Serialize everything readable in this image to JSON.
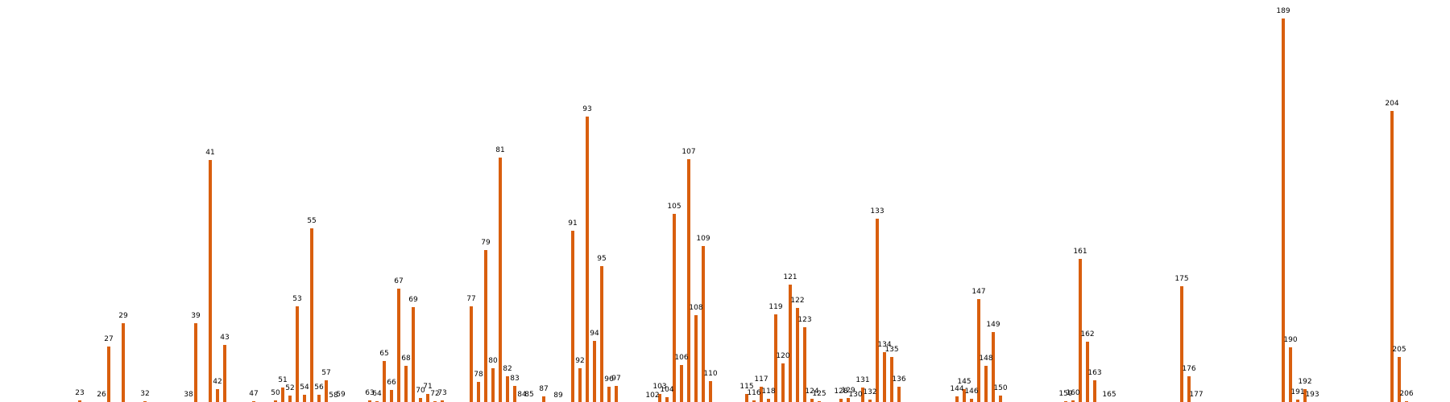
{
  "chart_data": {
    "type": "bar",
    "title": "",
    "xlabel": "",
    "ylabel": "",
    "color": "#d95f0e",
    "grid": false,
    "legend": "none",
    "xlim": [
      12,
      212
    ],
    "ylim": [
      0,
      480
    ],
    "points": [
      {
        "x": 23,
        "label": "23",
        "value": 6
      },
      {
        "x": 26,
        "label": "26",
        "value": 4
      },
      {
        "x": 27,
        "label": "27",
        "value": 73
      },
      {
        "x": 29,
        "label": "29",
        "value": 102
      },
      {
        "x": 32,
        "label": "32",
        "value": 5
      },
      {
        "x": 38,
        "label": "38",
        "value": 4
      },
      {
        "x": 39,
        "label": "39",
        "value": 102
      },
      {
        "x": 41,
        "label": "41",
        "value": 305
      },
      {
        "x": 42,
        "label": "42",
        "value": 20
      },
      {
        "x": 43,
        "label": "43",
        "value": 75
      },
      {
        "x": 47,
        "label": "47",
        "value": 5
      },
      {
        "x": 50,
        "label": "50",
        "value": 6
      },
      {
        "x": 51,
        "label": "51",
        "value": 22
      },
      {
        "x": 52,
        "label": "52",
        "value": 12
      },
      {
        "x": 53,
        "label": "53",
        "value": 123
      },
      {
        "x": 54,
        "label": "54",
        "value": 13
      },
      {
        "x": 55,
        "label": "55",
        "value": 220
      },
      {
        "x": 56,
        "label": "56",
        "value": 13
      },
      {
        "x": 57,
        "label": "57",
        "value": 31
      },
      {
        "x": 58,
        "label": "58",
        "value": 3
      },
      {
        "x": 59,
        "label": "59",
        "value": 4
      },
      {
        "x": 63,
        "label": "63",
        "value": 6
      },
      {
        "x": 64,
        "label": "64",
        "value": 5
      },
      {
        "x": 65,
        "label": "65",
        "value": 55
      },
      {
        "x": 66,
        "label": "66",
        "value": 19
      },
      {
        "x": 67,
        "label": "67",
        "value": 145
      },
      {
        "x": 68,
        "label": "68",
        "value": 49
      },
      {
        "x": 69,
        "label": "69",
        "value": 122
      },
      {
        "x": 70,
        "label": "70",
        "value": 9
      },
      {
        "x": 71,
        "label": "71",
        "value": 14
      },
      {
        "x": 72,
        "label": "72",
        "value": 5
      },
      {
        "x": 73,
        "label": "73",
        "value": 6
      },
      {
        "x": 77,
        "label": "77",
        "value": 123
      },
      {
        "x": 78,
        "label": "78",
        "value": 29
      },
      {
        "x": 79,
        "label": "79",
        "value": 193
      },
      {
        "x": 80,
        "label": "80",
        "value": 46
      },
      {
        "x": 81,
        "label": "81",
        "value": 308
      },
      {
        "x": 82,
        "label": "82",
        "value": 36
      },
      {
        "x": 83,
        "label": "83",
        "value": 24
      },
      {
        "x": 84,
        "label": "84",
        "value": 4
      },
      {
        "x": 85,
        "label": "85",
        "value": 4
      },
      {
        "x": 87,
        "label": "87",
        "value": 11
      },
      {
        "x": 89,
        "label": "89",
        "value": 3
      },
      {
        "x": 91,
        "label": "91",
        "value": 217
      },
      {
        "x": 92,
        "label": "92",
        "value": 46
      },
      {
        "x": 93,
        "label": "93",
        "value": 359
      },
      {
        "x": 94,
        "label": "94",
        "value": 80
      },
      {
        "x": 95,
        "label": "95",
        "value": 173
      },
      {
        "x": 96,
        "label": "96",
        "value": 23
      },
      {
        "x": 97,
        "label": "97",
        "value": 24
      },
      {
        "x": 102,
        "label": "102",
        "value": 3
      },
      {
        "x": 103,
        "label": "103",
        "value": 14
      },
      {
        "x": 104,
        "label": "104",
        "value": 10
      },
      {
        "x": 105,
        "label": "105",
        "value": 238
      },
      {
        "x": 106,
        "label": "106",
        "value": 50
      },
      {
        "x": 107,
        "label": "107",
        "value": 306
      },
      {
        "x": 108,
        "label": "108",
        "value": 112
      },
      {
        "x": 109,
        "label": "109",
        "value": 198
      },
      {
        "x": 110,
        "label": "110",
        "value": 30
      },
      {
        "x": 115,
        "label": "115",
        "value": 14
      },
      {
        "x": 116,
        "label": "116",
        "value": 6
      },
      {
        "x": 117,
        "label": "117",
        "value": 23
      },
      {
        "x": 118,
        "label": "118",
        "value": 8
      },
      {
        "x": 119,
        "label": "119",
        "value": 113
      },
      {
        "x": 120,
        "label": "120",
        "value": 52
      },
      {
        "x": 121,
        "label": "121",
        "value": 150
      },
      {
        "x": 122,
        "label": "122",
        "value": 121
      },
      {
        "x": 123,
        "label": "123",
        "value": 97
      },
      {
        "x": 124,
        "label": "124",
        "value": 8
      },
      {
        "x": 125,
        "label": "125",
        "value": 5
      },
      {
        "x": 128,
        "label": "128",
        "value": 8
      },
      {
        "x": 129,
        "label": "129",
        "value": 9
      },
      {
        "x": 130,
        "label": "130",
        "value": 4
      },
      {
        "x": 131,
        "label": "131",
        "value": 22
      },
      {
        "x": 132,
        "label": "132",
        "value": 7
      },
      {
        "x": 133,
        "label": "133",
        "value": 232
      },
      {
        "x": 134,
        "label": "134",
        "value": 66
      },
      {
        "x": 135,
        "label": "135",
        "value": 60
      },
      {
        "x": 136,
        "label": "136",
        "value": 23
      },
      {
        "x": 144,
        "label": "144",
        "value": 11
      },
      {
        "x": 145,
        "label": "145",
        "value": 20
      },
      {
        "x": 146,
        "label": "146",
        "value": 8
      },
      {
        "x": 147,
        "label": "147",
        "value": 132
      },
      {
        "x": 148,
        "label": "148",
        "value": 49
      },
      {
        "x": 149,
        "label": "149",
        "value": 91
      },
      {
        "x": 150,
        "label": "150",
        "value": 12
      },
      {
        "x": 159,
        "label": "159",
        "value": 5
      },
      {
        "x": 160,
        "label": "160",
        "value": 6
      },
      {
        "x": 161,
        "label": "161",
        "value": 182
      },
      {
        "x": 162,
        "label": "162",
        "value": 79
      },
      {
        "x": 163,
        "label": "163",
        "value": 31
      },
      {
        "x": 165,
        "label": "165",
        "value": 4
      },
      {
        "x": 175,
        "label": "175",
        "value": 148
      },
      {
        "x": 176,
        "label": "176",
        "value": 36
      },
      {
        "x": 177,
        "label": "177",
        "value": 4
      },
      {
        "x": 189,
        "label": "189",
        "value": 481
      },
      {
        "x": 190,
        "label": "190",
        "value": 72
      },
      {
        "x": 191,
        "label": "191",
        "value": 7
      },
      {
        "x": 192,
        "label": "192",
        "value": 20
      },
      {
        "x": 193,
        "label": "193",
        "value": 4
      },
      {
        "x": 204,
        "label": "204",
        "value": 366
      },
      {
        "x": 205,
        "label": "205",
        "value": 60
      },
      {
        "x": 206,
        "label": "206",
        "value": 5
      }
    ]
  }
}
